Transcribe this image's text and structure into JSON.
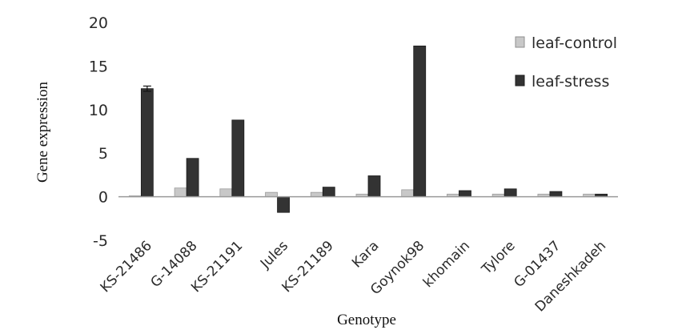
{
  "chart_data": {
    "type": "bar",
    "title": "",
    "xlabel": "Genotype",
    "ylabel": "Gene expression",
    "ylim": [
      -5,
      20
    ],
    "yticks": [
      20,
      15,
      10,
      5,
      0,
      -5
    ],
    "categories": [
      "KS-21486",
      "G-14088",
      "KS-21191",
      "Jules",
      "KS-21189",
      "Kara",
      "Goynok98",
      "khomain",
      "Tylore",
      "G-01437",
      "Daneshkadeh"
    ],
    "series": [
      {
        "name": "leaf-control",
        "color": "#c8c8c8",
        "values": [
          0.1,
          1.0,
          0.9,
          0.5,
          0.5,
          0.3,
          0.8,
          0.3,
          0.3,
          0.3,
          0.3
        ]
      },
      {
        "name": "leaf-stress",
        "color": "#333333",
        "values": [
          12.4,
          4.4,
          8.8,
          -1.8,
          1.1,
          2.4,
          17.3,
          0.7,
          0.9,
          0.6,
          0.3
        ]
      }
    ],
    "legend_position": "top-right",
    "grid": false
  }
}
